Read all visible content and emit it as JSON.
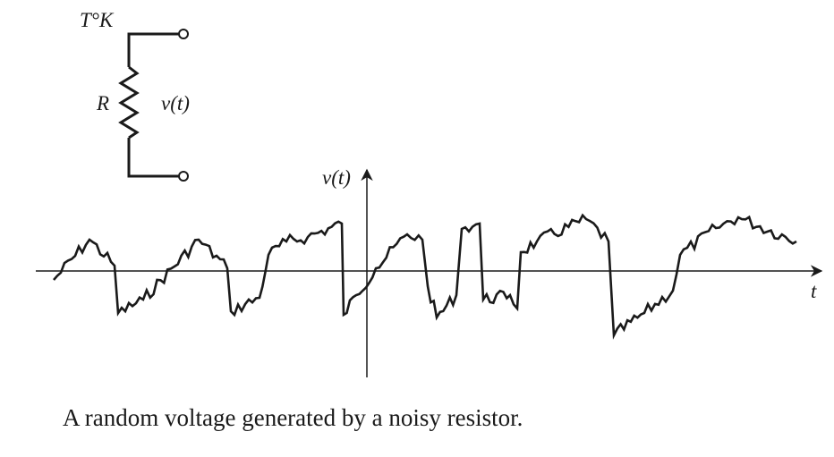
{
  "circuit": {
    "temperature_label": "T°K",
    "resistor_label": "R",
    "voltage_label": "v(t)"
  },
  "axes": {
    "y_label": "v(t)",
    "x_label": "t"
  },
  "caption": "A random voltage generated by a noisy resistor.",
  "colors": {
    "ink": "#1a1a1a",
    "background": "#ffffff"
  }
}
